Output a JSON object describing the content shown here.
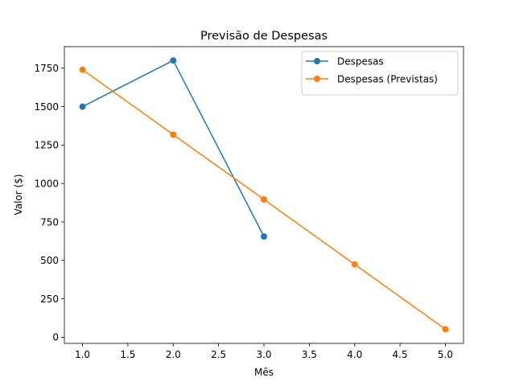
{
  "chart_data": {
    "type": "line",
    "title": "Previsão de Despesas",
    "xlabel": "Mês",
    "ylabel": "Valor ($)",
    "xlim": [
      0.8,
      5.2
    ],
    "ylim": [
      -40,
      1890
    ],
    "xticks": [
      1.0,
      1.5,
      2.0,
      2.5,
      3.0,
      3.5,
      4.0,
      4.5,
      5.0
    ],
    "xtick_labels": [
      "1.0",
      "1.5",
      "2.0",
      "2.5",
      "3.0",
      "3.5",
      "4.0",
      "4.5",
      "5.0"
    ],
    "yticks": [
      0,
      250,
      500,
      750,
      1000,
      1250,
      1500,
      1750
    ],
    "ytick_labels": [
      "0",
      "250",
      "500",
      "750",
      "1000",
      "1250",
      "1500",
      "1750"
    ],
    "grid": false,
    "legend_position": "top-right",
    "series": [
      {
        "name": "Despesas",
        "color": "#1f77b4",
        "x": [
          1,
          2,
          3
        ],
        "y": [
          1500,
          1800,
          655
        ]
      },
      {
        "name": "Despesas (Previstas)",
        "color": "#ff7f0e",
        "x": [
          1,
          2,
          3,
          4,
          5
        ],
        "y": [
          1740,
          1318,
          896,
          474,
          52
        ]
      }
    ]
  }
}
